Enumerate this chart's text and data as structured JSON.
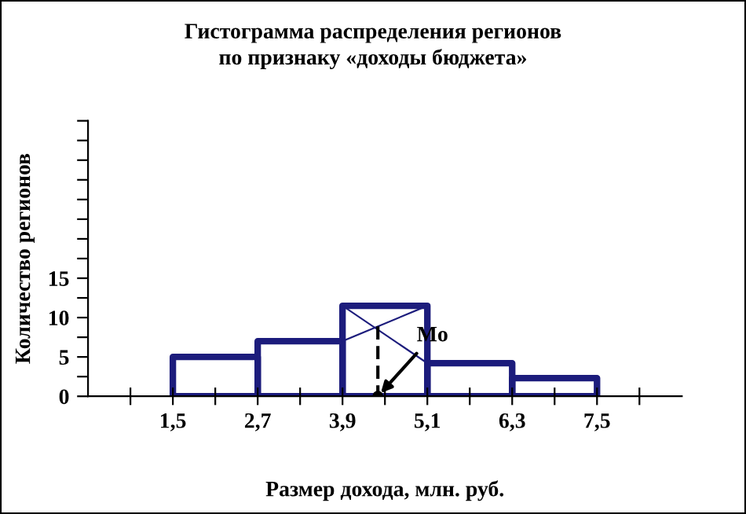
{
  "chart_data": {
    "type": "histogram",
    "title": "Гистограмма распределения регионов",
    "subtitle": "по признаку «доходы бюджета»",
    "xlabel": "Размер дохода, млн. руб.",
    "ylabel": "Количество регионов",
    "bins": [
      1.5,
      2.7,
      3.9,
      5.1,
      6.3,
      7.5
    ],
    "values": [
      5,
      7,
      11.5,
      4.2,
      2.3
    ],
    "color": "#1c1c7c",
    "xlim": [
      0.3,
      8.7
    ],
    "xticks": [
      {
        "value": 0.9,
        "label": null
      },
      {
        "value": 1.5,
        "label": "1,5"
      },
      {
        "value": 2.1,
        "label": null
      },
      {
        "value": 2.7,
        "label": "2,7"
      },
      {
        "value": 3.3,
        "label": null
      },
      {
        "value": 3.9,
        "label": "3,9"
      },
      {
        "value": 4.5,
        "label": null
      },
      {
        "value": 5.1,
        "label": "5,1"
      },
      {
        "value": 5.7,
        "label": null
      },
      {
        "value": 6.3,
        "label": "6,3"
      },
      {
        "value": 6.9,
        "label": null
      },
      {
        "value": 7.5,
        "label": "7,5"
      },
      {
        "value": 8.1,
        "label": null
      }
    ],
    "ylim": [
      0,
      35
    ],
    "yticks": [
      0,
      {
        "value": 2.5,
        "label": null
      },
      5,
      {
        "value": 7.5,
        "label": null
      },
      10,
      {
        "value": 12.5,
        "label": null
      },
      15,
      {
        "value": 17.5,
        "label": null
      },
      {
        "value": 20,
        "label": null
      },
      {
        "value": 22.5,
        "label": null
      },
      {
        "value": 25,
        "label": null
      },
      {
        "value": 27.5,
        "label": null
      },
      {
        "value": 30,
        "label": null
      },
      {
        "value": 32.5,
        "label": null
      },
      {
        "value": 35,
        "label": null
      }
    ],
    "annotations": [
      {
        "text": "Mo",
        "x": 4.4,
        "y": 0
      }
    ],
    "grid": false,
    "legend": false
  }
}
